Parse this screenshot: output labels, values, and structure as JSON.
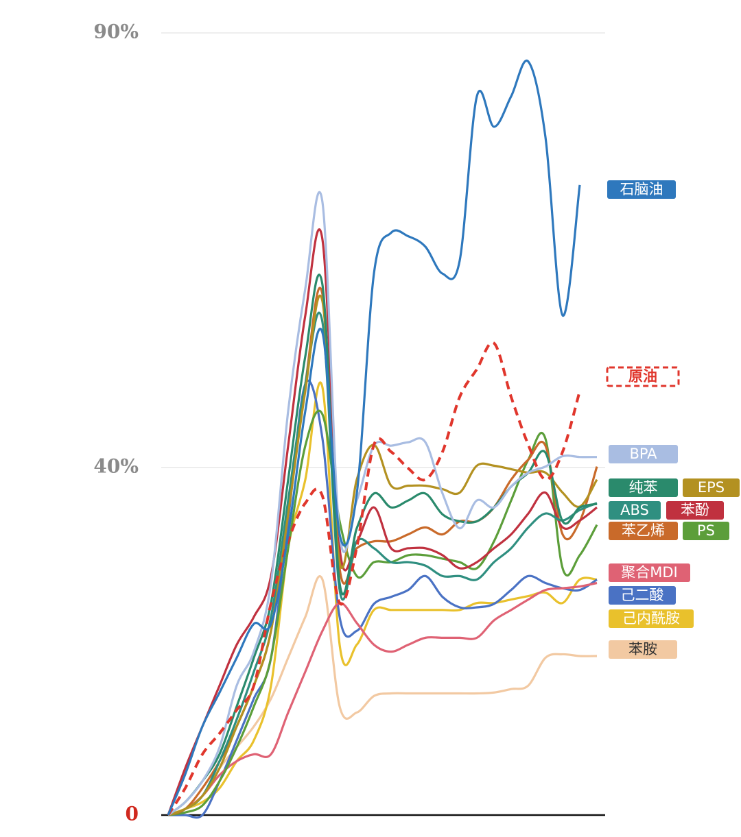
{
  "chart_data": {
    "type": "line",
    "categories": [
      null,
      null,
      null,
      null,
      null,
      null,
      null,
      null,
      null,
      null,
      null,
      null,
      null,
      null,
      null,
      null,
      null,
      null,
      null,
      null,
      null,
      null,
      null,
      null,
      null,
      null
    ],
    "ylim": [
      0,
      90
    ],
    "yticks": [
      0,
      {
        "value": 40,
        "label": "40%"
      },
      {
        "value": 90,
        "label": "90%"
      }
    ],
    "grid": true,
    "series": [
      {
        "name": "苯胺",
        "color": "#f2c9a2",
        "values": [
          0,
          0.7,
          2.2,
          5.4,
          7.8,
          10.2,
          13.4,
          18.1,
          22.8,
          27.1,
          12.5,
          11.8,
          13.7,
          14.0,
          14.0,
          14.0,
          14.0,
          14.0,
          14.0,
          14.1,
          14.5,
          14.9,
          18.1,
          18.5,
          18.3,
          18.3
        ]
      },
      {
        "name": "己内酰胺",
        "color": "#e9c12c",
        "values": [
          0,
          0.7,
          1.5,
          3.1,
          6.2,
          8.6,
          14.9,
          30.7,
          38.6,
          49.2,
          19.6,
          19.6,
          23.6,
          23.6,
          23.6,
          23.6,
          23.6,
          23.6,
          24.4,
          24.4,
          24.8,
          25.2,
          25.6,
          24.4,
          27.1,
          27.1
        ]
      },
      {
        "name": "己二酸",
        "color": "#4a72c4",
        "values": [
          0,
          0,
          0,
          3.9,
          8.6,
          13.4,
          18.1,
          33.9,
          49.6,
          43.3,
          22.8,
          21.2,
          24.3,
          25.1,
          25.9,
          27.5,
          25.1,
          23.9,
          23.9,
          24.3,
          25.9,
          27.5,
          26.7,
          26.1,
          25.9,
          27.1
        ]
      },
      {
        "name": "聚合MDI",
        "color": "#df6274",
        "values": [
          0,
          0.7,
          2.2,
          4.6,
          6.2,
          7.0,
          7.0,
          11.8,
          16.5,
          21.2,
          24.4,
          22.1,
          19.6,
          18.8,
          19.6,
          20.4,
          20.4,
          20.4,
          20.4,
          22.4,
          23.6,
          24.8,
          25.9,
          26.1,
          26.3,
          26.7
        ]
      },
      {
        "name": "PS",
        "color": "#5c9e3a",
        "values": [
          0,
          0.3,
          1.1,
          3.9,
          7.8,
          12.5,
          18.1,
          30.7,
          42.5,
          46.1,
          33.8,
          27.5,
          29.1,
          29.1,
          29.9,
          29.9,
          29.5,
          29.1,
          28.4,
          31.5,
          36.2,
          40.9,
          43.3,
          28.4,
          29.9,
          33.4
        ]
      },
      {
        "name": "苯乙烯",
        "color": "#c96a2a",
        "values": [
          0,
          0.7,
          3.1,
          6.2,
          10.2,
          14.9,
          21.2,
          35.4,
          49.6,
          59.9,
          28.4,
          30.7,
          31.5,
          31.5,
          32.3,
          33.1,
          32.3,
          33.8,
          33.8,
          35.4,
          38.6,
          40.9,
          42.5,
          32.3,
          33.8,
          40.1
        ]
      },
      {
        "name": "苯酚",
        "color": "#c0313f",
        "values": [
          0,
          5.4,
          10.2,
          14.9,
          19.6,
          22.8,
          27.5,
          42.5,
          57.5,
          66.2,
          30.7,
          31.5,
          35.4,
          30.7,
          30.7,
          30.7,
          29.9,
          28.4,
          29.1,
          30.7,
          32.3,
          34.7,
          37.1,
          33.1,
          33.9,
          35.4
        ]
      },
      {
        "name": "ABS",
        "color": "#2f8f80",
        "values": [
          0,
          0.7,
          2.2,
          6.2,
          11.0,
          16.5,
          22.8,
          36.2,
          49.6,
          56.7,
          25.9,
          31.5,
          30.7,
          29.1,
          29.1,
          28.7,
          27.5,
          27.5,
          27.1,
          29.1,
          30.7,
          33.1,
          34.7,
          33.9,
          35.1,
          35.9
        ]
      },
      {
        "name": "EPS",
        "color": "#b39121",
        "values": [
          0,
          0.7,
          2.2,
          5.4,
          10.2,
          14.9,
          21.2,
          34.6,
          48.8,
          59.1,
          29.1,
          38.6,
          42.6,
          37.9,
          37.9,
          37.9,
          37.5,
          37.1,
          40.2,
          40.2,
          39.8,
          39.4,
          39.4,
          37.1,
          35.5,
          38.6
        ]
      },
      {
        "name": "纯苯",
        "color": "#2a8a6c",
        "values": [
          0,
          1.5,
          3.9,
          7.0,
          12.5,
          18.1,
          24.4,
          38.6,
          52.8,
          61.0,
          26.7,
          33.0,
          37.0,
          35.4,
          36.2,
          37.0,
          34.6,
          33.8,
          33.8,
          35.4,
          37.8,
          39.4,
          41.7,
          33.8,
          35.4,
          35.8
        ]
      },
      {
        "name": "BPA",
        "color": "#a9bde2",
        "values": [
          0,
          1.5,
          3.9,
          7.8,
          14.9,
          18.8,
          26.7,
          46.5,
          60.6,
          70.5,
          32.3,
          36.2,
          42.5,
          42.5,
          42.9,
          42.9,
          37.0,
          33.0,
          36.2,
          35.4,
          37.8,
          39.4,
          40.1,
          41.3,
          41.2,
          41.2
        ]
      },
      {
        "name": "原油",
        "color": "#e0362c",
        "dashed": true,
        "values": [
          0,
          3.1,
          7.0,
          9.4,
          12.1,
          14.9,
          24.4,
          31.5,
          35.9,
          36.7,
          24.4,
          30.8,
          42.6,
          41.8,
          39.9,
          38.6,
          41.8,
          48.1,
          51.3,
          54.3,
          48.1,
          42.6,
          38.6,
          41.8,
          48.8,
          null
        ]
      },
      {
        "name": "石脑油",
        "color": "#2e78bd",
        "values": [
          0,
          4.7,
          10.2,
          14.1,
          18.1,
          22.0,
          22.0,
          32.3,
          46.5,
          55.5,
          32.3,
          37.0,
          62.3,
          67.0,
          66.6,
          65.4,
          62.3,
          63.8,
          82.7,
          79.2,
          82.7,
          86.7,
          78.0,
          57.5,
          72.5,
          null
        ]
      }
    ]
  }
}
